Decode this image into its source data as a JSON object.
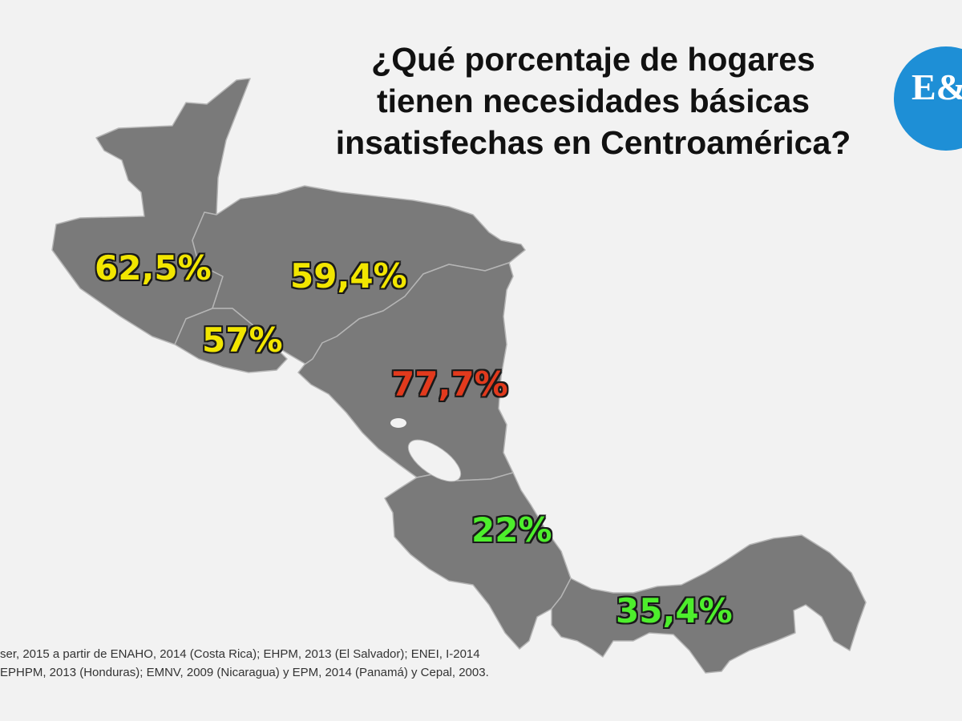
{
  "title": {
    "line1": "¿Qué porcentaje de hogares",
    "line2": "tienen necesidades básicas",
    "line3": "insatisfechas en Centroamérica?"
  },
  "logo": {
    "text": "E&N"
  },
  "colors": {
    "background": "#f2f2f2",
    "land": "#7a7a7a",
    "border": "#b5b5b5",
    "high": "#f2e600",
    "highest": "#e23a1d",
    "low": "#4dee2c",
    "logo": "#1e8fd6"
  },
  "regions": {
    "guatemala": {
      "value": "62,5%"
    },
    "honduras": {
      "value": "59,4%"
    },
    "el_salvador": {
      "value": "57%"
    },
    "nicaragua": {
      "value": "77,7%"
    },
    "costa_rica": {
      "value": "22%"
    },
    "panama": {
      "value": "35,4%"
    }
  },
  "source": {
    "line1": "ser, 2015 a partir de ENAHO, 2014 (Costa Rica); EHPM, 2013 (El Salvador); ENEI, I-2014",
    "line2": "EPHPM, 2013 (Honduras); EMNV, 2009 (Nicaragua) y EPM, 2014 (Panamá) y Cepal, 2003."
  }
}
